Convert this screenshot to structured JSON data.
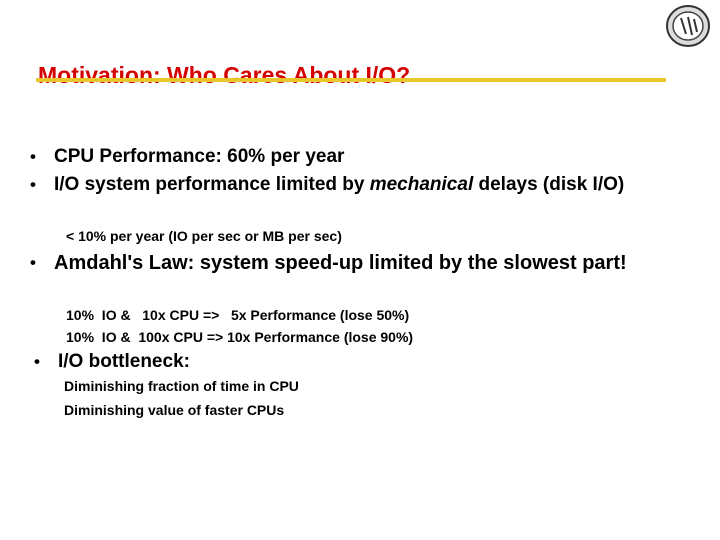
{
  "title": "Motivation: Who Cares About I/O?",
  "bullets": [
    {
      "text": "CPU Performance: 60% per year"
    },
    {
      "text_before": "I/O system performance limited by ",
      "emphasis": "mechanical",
      "text_after": " delays (disk I/O)",
      "subitems": [
        "< 10% per year (IO per sec or MB per sec)"
      ]
    },
    {
      "text": "Amdahl's Law: system speed-up limited by the slowest part!",
      "subitems": [
        "10%  IO &   10x CPU =>   5x Performance (lose 50%)",
        "10%  IO &  100x CPU => 10x Performance (lose 90%)"
      ]
    },
    {
      "text": "I/O bottleneck:",
      "subitems": [
        "Diminishing fraction of time in CPU",
        "Diminishing value of faster CPUs"
      ]
    }
  ]
}
